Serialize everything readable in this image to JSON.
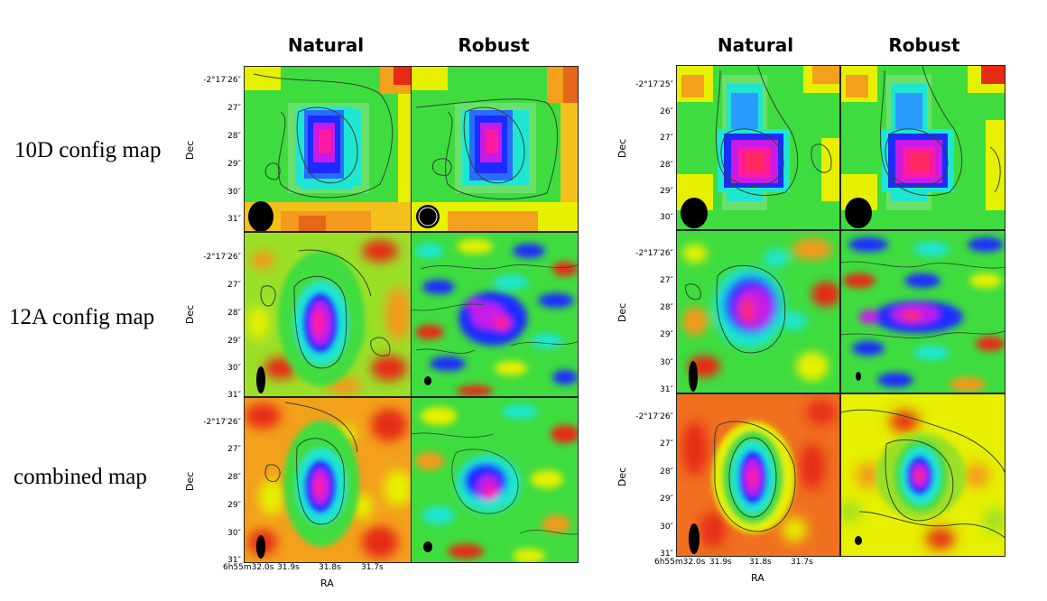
{
  "column_titles": [
    "Natural",
    "Robust",
    "Natural",
    "Robust"
  ],
  "row_labels": [
    "10D config map",
    "12A config map",
    "combined map"
  ],
  "axis": {
    "dec_label": "Dec",
    "ra_label": "RA"
  },
  "left_block": {
    "row1_ticks": [
      "-2°17′26″",
      "27″",
      "28″",
      "29″",
      "30″",
      "31″"
    ],
    "row2_ticks": [
      "-2°17′26″",
      "27″",
      "28″",
      "29″",
      "30″",
      "31″"
    ],
    "row3_ticks": [
      "-2°17′26″",
      "27″",
      "28″",
      "29″",
      "30″",
      "31″"
    ],
    "ra_ticks": [
      "6h55m32.0s",
      "31.9s",
      "31.8s",
      "31.7s"
    ]
  },
  "right_block": {
    "row1_ticks": [
      "-2°17′25″",
      "26″",
      "27″",
      "28″",
      "29″",
      "30″"
    ],
    "row2_ticks": [
      "-2°17′26″",
      "27″",
      "28″",
      "29″",
      "30″",
      "31″"
    ],
    "row3_ticks": [
      "-2°17′26″",
      "27″",
      "28″",
      "29″",
      "30″",
      "31″"
    ],
    "ra_ticks": [
      "6h55m32.0s",
      "31.9s",
      "31.8s",
      "31.7s"
    ]
  },
  "colors": {
    "background_green": "#3fdc3f",
    "noise_red": "#e62a14",
    "noise_orange": "#f39a1c",
    "noise_yellow": "#e8f000",
    "source_cyan": "#1ee6d2",
    "source_blue": "#1a2cff",
    "source_magenta": "#e81ae0",
    "contour": "#2a4a2a"
  }
}
